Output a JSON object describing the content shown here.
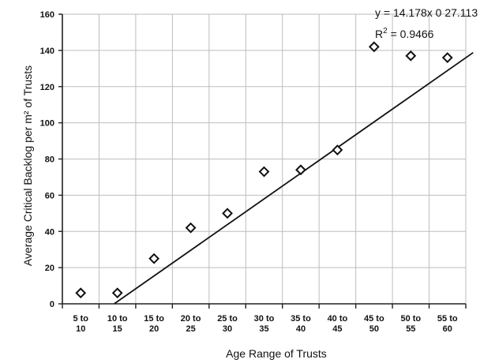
{
  "chart_data": {
    "type": "scatter",
    "title": "",
    "xlabel": "Age Range of Trusts",
    "ylabel": "Average Critical Backlog per m² of Trusts",
    "ylim": [
      0,
      160
    ],
    "yticks": [
      0,
      20,
      40,
      60,
      80,
      100,
      120,
      140,
      160
    ],
    "grid": true,
    "legend": "none",
    "categories": [
      [
        "5 to",
        "10"
      ],
      [
        "10 to",
        "15"
      ],
      [
        "15 to",
        "20"
      ],
      [
        "20 to",
        "25"
      ],
      [
        "25 to",
        "30"
      ],
      [
        "30 to",
        "35"
      ],
      [
        "35 to",
        "40"
      ],
      [
        "40 to",
        "45"
      ],
      [
        "45 to",
        "50"
      ],
      [
        "50 to",
        "55"
      ],
      [
        "55 to",
        "60"
      ]
    ],
    "series": [
      {
        "values": [
          6,
          6,
          25,
          42,
          50,
          73,
          74,
          85,
          142,
          137,
          136
        ]
      }
    ],
    "trendline": {
      "type": "linear",
      "equation": "y = 14.178x 0 27.113",
      "r2_prefix": "R",
      "r2_sup": "2",
      "r2_suffix": " = 0.9466",
      "slope": 14.178,
      "intercept": -27.113
    },
    "colors": {
      "marker": "#111111",
      "grid": "#bdbdbd",
      "line": "#111111"
    }
  }
}
